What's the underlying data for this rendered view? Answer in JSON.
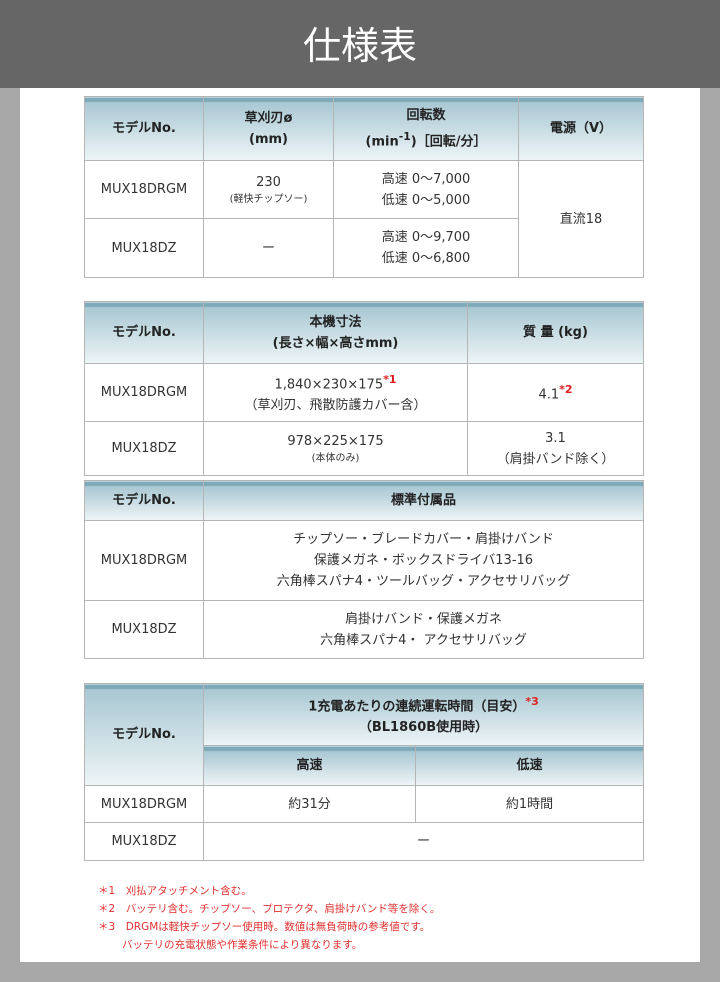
{
  "title": "仕様表",
  "model_header": "モデルNo.",
  "models": [
    "MUX18DRGM",
    "MUX18DZ"
  ],
  "table1": {
    "headers": [
      "草刈刃ø",
      "(mm)",
      "回転数",
      "(min",
      "-1",
      ")［回転/分］",
      "電源（V）"
    ],
    "rows": [
      {
        "blade": "230",
        "blade_note": "(軽快チップソー)",
        "speed_high": "高速 0〜7,000",
        "speed_low": "低速 0〜5,000"
      },
      {
        "blade": "ー",
        "speed_high": "高速 0〜9,700",
        "speed_low": "低速 0〜6,800"
      }
    ],
    "power": "直流18"
  },
  "table2": {
    "headers": [
      "本機寸法",
      "(長さ×幅×高さmm)",
      "質 量 (kg)"
    ],
    "rows": [
      {
        "dim": "1,840×230×175",
        "dim_mark": "*1",
        "dim_note": "（草刈刃、飛散防護カバー含）",
        "weight": "4.1",
        "weight_mark": "*2"
      },
      {
        "dim": "978×225×175",
        "dim_note": "(本体のみ)",
        "weight": "3.1",
        "weight_note": "（肩掛バンド除く）"
      }
    ]
  },
  "table3": {
    "header": "標準付属品",
    "rows": [
      [
        "チップソー・ブレードカバー・肩掛けバンド",
        "保護メガネ・ボックスドライバ13-16",
        "六角棒スパナ4・ツールバッグ・アクセサリバッグ"
      ],
      [
        "肩掛けバンド・保護メガネ",
        "六角棒スパナ4・ アクセサリバッグ"
      ]
    ]
  },
  "table4": {
    "header": "1充電あたりの連続運転時間（目安）",
    "header_mark": "*3",
    "header_sub": "（BL1860B使用時）",
    "sub_headers": [
      "高速",
      "低速"
    ],
    "rows": [
      [
        "約31分",
        "約1時間"
      ],
      [
        "ー"
      ]
    ]
  },
  "notes": [
    {
      "mark": "＊1",
      "text": "刈払アタッチメント含む。"
    },
    {
      "mark": "＊2",
      "text": "バッテリ含む。チップソー、プロテクタ、肩掛けバンド等を除く。"
    },
    {
      "mark": "＊3",
      "text": "DRGMは軽快チップソー使用時。数値は無負荷時の参考値です。",
      "cont": "バッテリの充電状態や作業条件により異なります。"
    }
  ],
  "colors": {
    "header_grad_top": "#a9c8d3",
    "note_red": "#e03030",
    "topbar": "#666666"
  }
}
